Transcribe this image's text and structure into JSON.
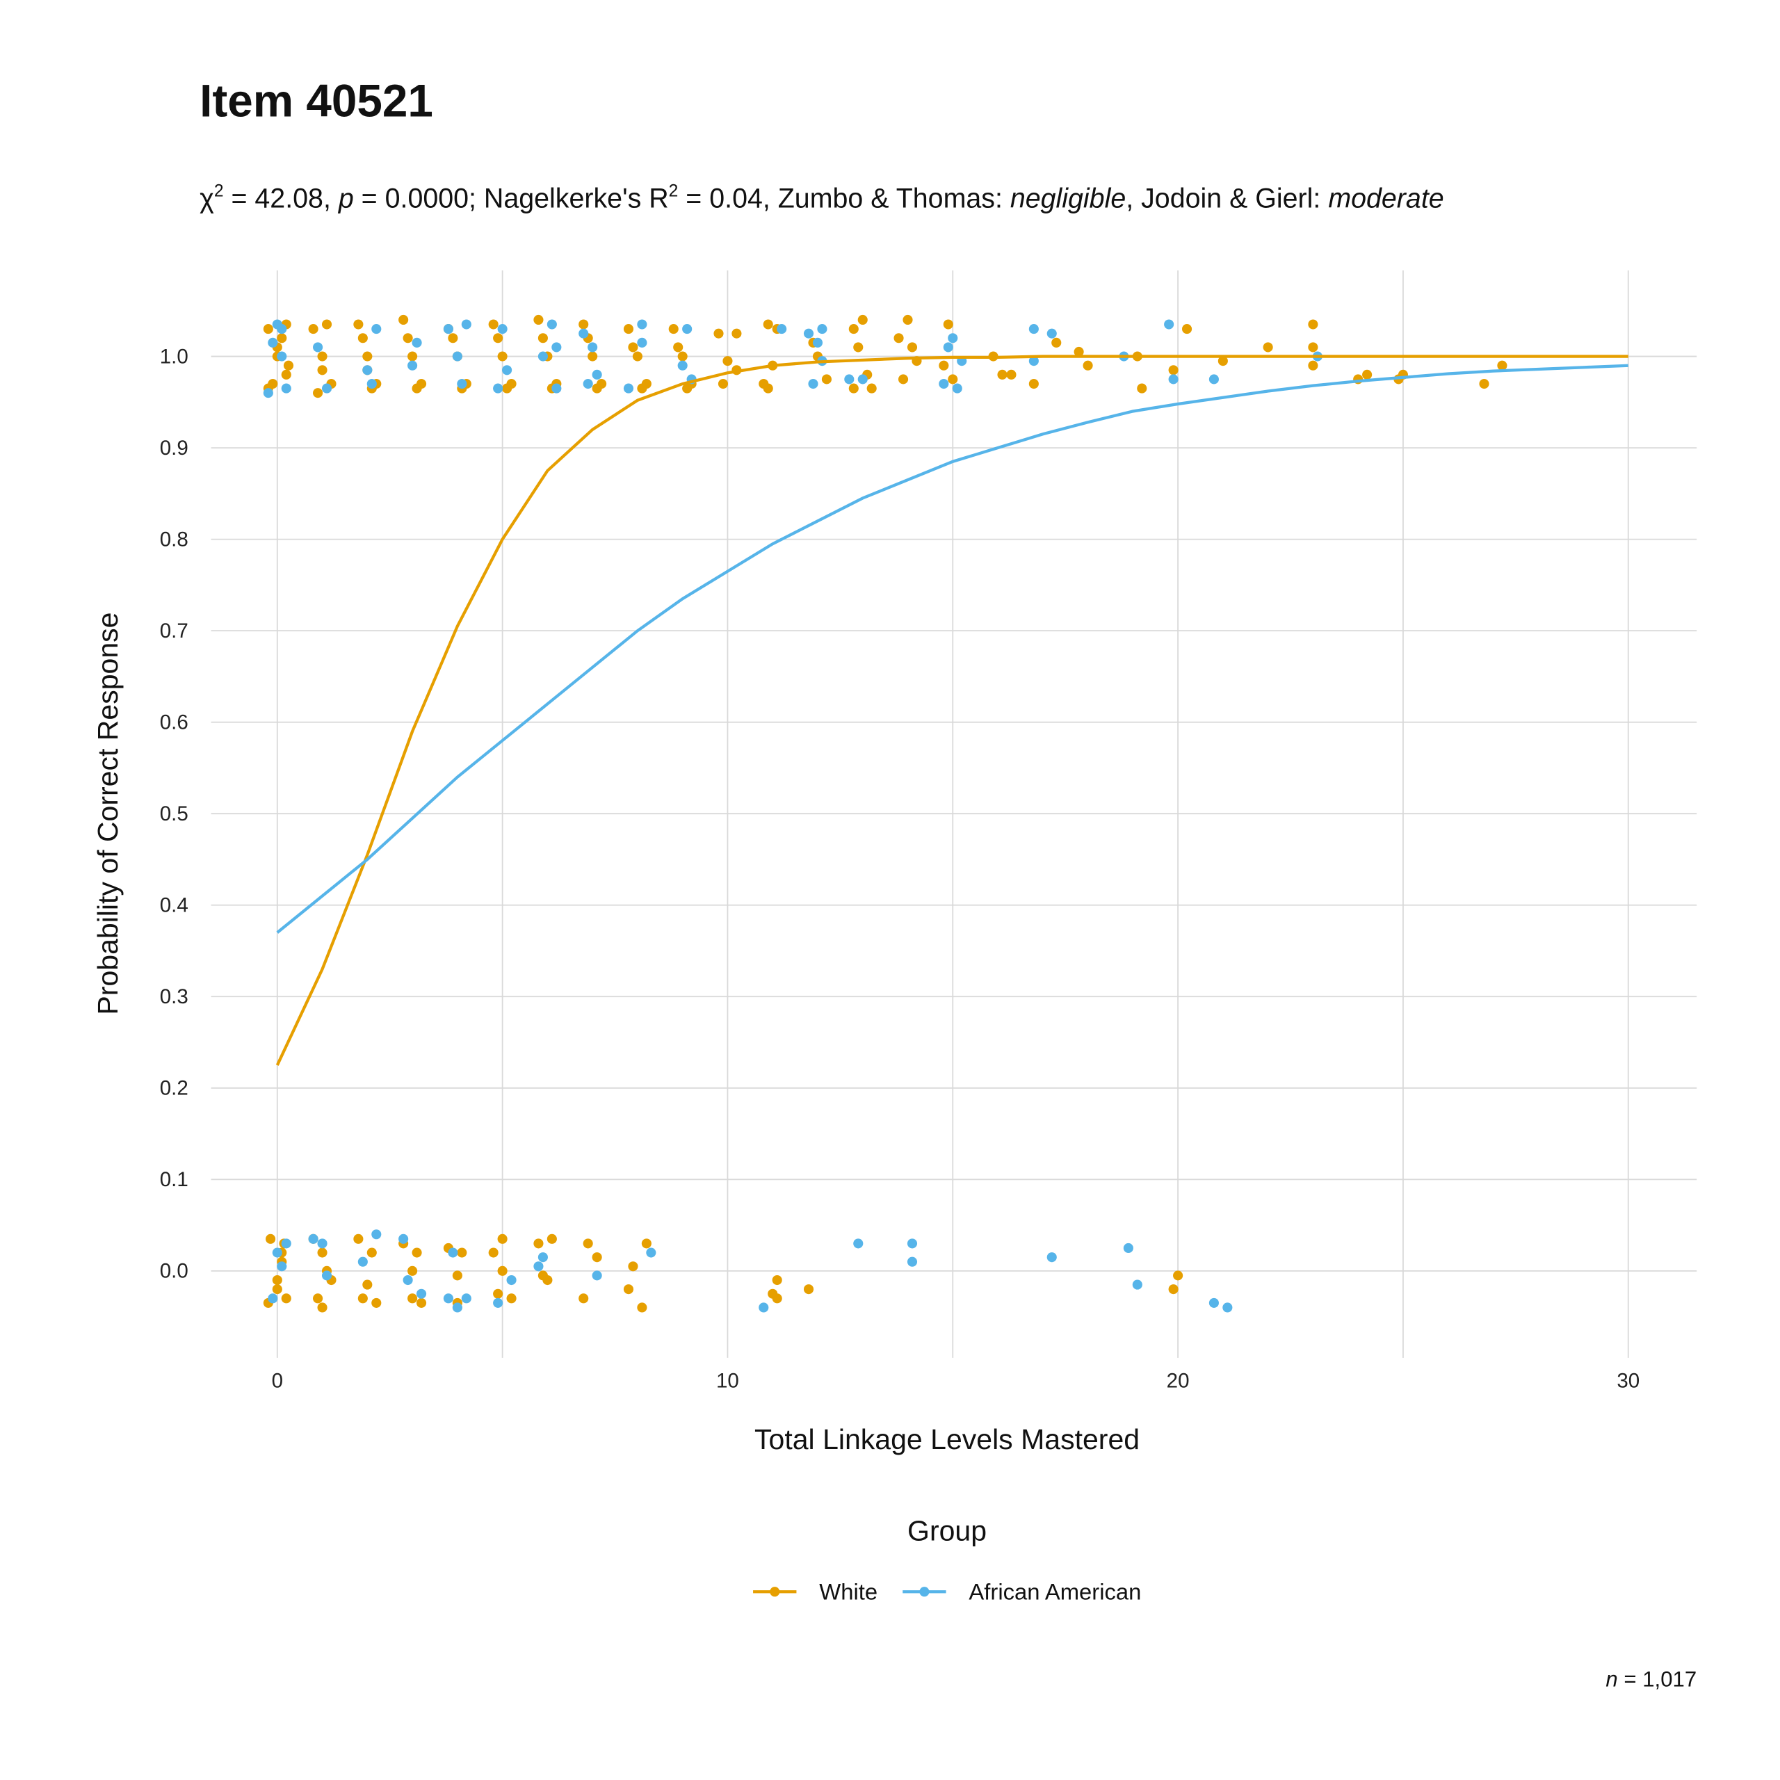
{
  "chart_data": {
    "type": "scatter",
    "title": "Item 40521",
    "subtitle": [
      "χ",
      "2",
      " = 42.08, ",
      "p",
      " = 0.0000; Nagelkerke's R",
      "2",
      " = 0.04, Zumbo & Thomas: ",
      "negligible",
      ", Jodoin & Gierl: ",
      "moderate"
    ],
    "x_label": "Total Linkage Levels Mastered",
    "y_label": "Probability of Correct Response",
    "legend_title": "Group",
    "caption": [
      "n",
      " = 1,017"
    ],
    "xlim": [
      -1.47,
      31.52
    ],
    "ylim": [
      -0.095,
      1.094
    ],
    "xticks": [
      0,
      10,
      20,
      30
    ],
    "x_minor_grid": [
      5,
      15,
      25
    ],
    "yticks": [
      {
        "value": 0,
        "label": "0.0"
      },
      0.1,
      0.2,
      0.3,
      0.4,
      0.5,
      0.6,
      0.7,
      0.8,
      0.9,
      {
        "value": 1,
        "label": "1.0"
      }
    ],
    "grid": true,
    "legend": "bottom",
    "series": [
      {
        "name": "White",
        "color": "#E69F00",
        "points": [
          [
            -0.2,
            1.03
          ],
          [
            0,
            1.0
          ],
          [
            0.2,
            0.98
          ],
          [
            -0.1,
            0.97
          ],
          [
            0.1,
            1.02
          ],
          [
            0.2,
            1.035
          ],
          [
            -0.2,
            0.965
          ],
          [
            0,
            1.01
          ],
          [
            0.25,
            0.99
          ],
          [
            -0.15,
            0.035
          ],
          [
            0.1,
            0.02
          ],
          [
            0,
            -0.01
          ],
          [
            0.2,
            -0.03
          ],
          [
            -0.2,
            -0.035
          ],
          [
            0.15,
            0.03
          ],
          [
            0,
            -0.02
          ],
          [
            0.1,
            0.01
          ],
          [
            0.8,
            1.03
          ],
          [
            1,
            1.0
          ],
          [
            1.2,
            0.97
          ],
          [
            0.9,
            0.96
          ],
          [
            1.1,
            1.035
          ],
          [
            1,
            0.985
          ],
          [
            0.8,
            0.035
          ],
          [
            1,
            0.02
          ],
          [
            1.2,
            -0.01
          ],
          [
            0.9,
            -0.03
          ],
          [
            1.1,
            0.0
          ],
          [
            1,
            -0.04
          ],
          [
            1.8,
            1.035
          ],
          [
            2,
            1.0
          ],
          [
            2.2,
            0.97
          ],
          [
            1.9,
            1.02
          ],
          [
            2.1,
            0.965
          ],
          [
            2,
            0.985
          ],
          [
            1.8,
            0.035
          ],
          [
            2.1,
            0.02
          ],
          [
            2,
            -0.015
          ],
          [
            2.2,
            -0.035
          ],
          [
            1.9,
            -0.03
          ],
          [
            2.8,
            1.04
          ],
          [
            3,
            1.0
          ],
          [
            3.2,
            0.97
          ],
          [
            2.9,
            1.02
          ],
          [
            3.1,
            0.965
          ],
          [
            2.8,
            0.03
          ],
          [
            3.1,
            0.02
          ],
          [
            3,
            -0.03
          ],
          [
            3.2,
            -0.035
          ],
          [
            3,
            0.0
          ],
          [
            3.8,
            1.03
          ],
          [
            4,
            1.0
          ],
          [
            4.2,
            0.97
          ],
          [
            3.9,
            1.02
          ],
          [
            4.1,
            0.965
          ],
          [
            3.8,
            0.025
          ],
          [
            4,
            -0.005
          ],
          [
            4.1,
            0.02
          ],
          [
            4,
            -0.035
          ],
          [
            4.8,
            1.035
          ],
          [
            5,
            1.0
          ],
          [
            5.2,
            0.97
          ],
          [
            4.9,
            1.02
          ],
          [
            5.1,
            0.965
          ],
          [
            4.8,
            0.02
          ],
          [
            5,
            0.035
          ],
          [
            5,
            0.0
          ],
          [
            5.2,
            -0.03
          ],
          [
            4.9,
            -0.025
          ],
          [
            5.8,
            1.04
          ],
          [
            6,
            1.0
          ],
          [
            6.2,
            0.97
          ],
          [
            5.9,
            1.02
          ],
          [
            6.1,
            0.965
          ],
          [
            5.8,
            0.03
          ],
          [
            6.1,
            0.035
          ],
          [
            6,
            -0.01
          ],
          [
            5.9,
            -0.005
          ],
          [
            6.8,
            1.035
          ],
          [
            7,
            1.0
          ],
          [
            7.2,
            0.97
          ],
          [
            6.9,
            1.02
          ],
          [
            7.1,
            0.965
          ],
          [
            6.9,
            0.03
          ],
          [
            7.1,
            0.015
          ],
          [
            6.8,
            -0.03
          ],
          [
            7.8,
            1.03
          ],
          [
            8,
            1.0
          ],
          [
            8.2,
            0.97
          ],
          [
            7.9,
            1.01
          ],
          [
            8.1,
            0.965
          ],
          [
            7.9,
            0.005
          ],
          [
            8.2,
            0.03
          ],
          [
            7.8,
            -0.02
          ],
          [
            8.1,
            -0.04
          ],
          [
            8.8,
            1.03
          ],
          [
            9,
            1.0
          ],
          [
            9.2,
            0.97
          ],
          [
            8.9,
            1.01
          ],
          [
            9.1,
            0.965
          ],
          [
            9.8,
            1.025
          ],
          [
            10.2,
            1.025
          ],
          [
            10,
            0.995
          ],
          [
            9.9,
            0.97
          ],
          [
            10.2,
            0.985
          ],
          [
            10.9,
            1.035
          ],
          [
            11.1,
            1.03
          ],
          [
            11,
            0.99
          ],
          [
            10.8,
            0.97
          ],
          [
            10.9,
            0.965
          ],
          [
            11,
            -0.025
          ],
          [
            11.1,
            -0.03
          ],
          [
            11.1,
            -0.01
          ],
          [
            11.8,
            -0.02
          ],
          [
            12,
            1.0
          ],
          [
            12.2,
            0.975
          ],
          [
            11.9,
            1.015
          ],
          [
            12.8,
            1.03
          ],
          [
            13,
            1.04
          ],
          [
            12.9,
            1.01
          ],
          [
            13.1,
            0.98
          ],
          [
            13.2,
            0.965
          ],
          [
            12.8,
            0.965
          ],
          [
            13.8,
            1.02
          ],
          [
            14,
            1.04
          ],
          [
            14.1,
            1.01
          ],
          [
            13.9,
            0.975
          ],
          [
            14.2,
            0.995
          ],
          [
            14.9,
            1.035
          ],
          [
            14.8,
            0.99
          ],
          [
            15,
            0.975
          ],
          [
            15.9,
            1.0
          ],
          [
            16.1,
            0.98
          ],
          [
            16.3,
            0.98
          ],
          [
            16.8,
            0.97
          ],
          [
            17.3,
            1.015
          ],
          [
            17.8,
            1.005
          ],
          [
            18,
            0.99
          ],
          [
            19.1,
            1.0
          ],
          [
            19.2,
            0.965
          ],
          [
            19.9,
            0.985
          ],
          [
            20.2,
            1.03
          ],
          [
            19.9,
            -0.02
          ],
          [
            20,
            -0.005
          ],
          [
            21,
            0.995
          ],
          [
            22,
            1.01
          ],
          [
            23,
            1.035
          ],
          [
            23,
            1.01
          ],
          [
            23,
            0.99
          ],
          [
            24,
            0.975
          ],
          [
            24.2,
            0.98
          ],
          [
            25,
            0.98
          ],
          [
            24.9,
            0.975
          ],
          [
            26.8,
            0.97
          ],
          [
            27.2,
            0.99
          ]
        ],
        "fit_x": [
          0,
          1,
          2,
          3,
          4,
          5,
          6,
          7,
          8,
          9,
          10,
          11,
          12,
          13,
          14,
          15,
          16,
          17,
          18,
          19,
          20,
          21,
          22,
          23,
          24,
          25,
          26,
          27,
          28,
          29,
          30
        ],
        "fit_y": [
          0.225,
          0.33,
          0.455,
          0.59,
          0.705,
          0.8,
          0.875,
          0.92,
          0.952,
          0.97,
          0.982,
          0.99,
          0.994,
          0.996,
          0.998,
          0.999,
          0.999,
          1,
          1,
          1,
          1,
          1,
          1,
          1,
          1,
          1,
          1,
          1,
          1,
          1,
          1
        ]
      },
      {
        "name": "African American",
        "color": "#56B4E9",
        "points": [
          [
            -0.2,
            0.96
          ],
          [
            0,
            1.035
          ],
          [
            0.1,
            1.0
          ],
          [
            -0.1,
            1.015
          ],
          [
            0.2,
            0.965
          ],
          [
            0.1,
            1.03
          ],
          [
            0,
            0.02
          ],
          [
            -0.1,
            -0.03
          ],
          [
            0.1,
            0.005
          ],
          [
            0.2,
            0.03
          ],
          [
            0.9,
            1.01
          ],
          [
            1.1,
            0.965
          ],
          [
            0.8,
            0.035
          ],
          [
            1,
            0.03
          ],
          [
            1.1,
            -0.005
          ],
          [
            2.2,
            1.03
          ],
          [
            2,
            0.985
          ],
          [
            2.1,
            0.97
          ],
          [
            2.2,
            0.04
          ],
          [
            1.9,
            0.01
          ],
          [
            3.1,
            1.015
          ],
          [
            3,
            0.99
          ],
          [
            2.8,
            0.035
          ],
          [
            2.9,
            -0.01
          ],
          [
            3.2,
            -0.025
          ],
          [
            3.8,
            1.03
          ],
          [
            4.2,
            1.035
          ],
          [
            4,
            1.0
          ],
          [
            4.1,
            0.97
          ],
          [
            3.9,
            0.02
          ],
          [
            4,
            -0.04
          ],
          [
            4.2,
            -0.03
          ],
          [
            3.8,
            -0.03
          ],
          [
            4.9,
            0.965
          ],
          [
            5.1,
            0.985
          ],
          [
            5,
            1.03
          ],
          [
            4.9,
            -0.035
          ],
          [
            5.2,
            -0.01
          ],
          [
            6.1,
            1.035
          ],
          [
            6.2,
            1.01
          ],
          [
            5.9,
            1.0
          ],
          [
            6.2,
            0.965
          ],
          [
            5.8,
            0.005
          ],
          [
            5.9,
            0.015
          ],
          [
            6.8,
            1.025
          ],
          [
            7,
            1.01
          ],
          [
            7.1,
            0.98
          ],
          [
            7.1,
            -0.005
          ],
          [
            6.9,
            0.97
          ],
          [
            8.1,
            1.035
          ],
          [
            8.1,
            1.015
          ],
          [
            7.8,
            0.965
          ],
          [
            8.3,
            0.02
          ],
          [
            9.1,
            1.03
          ],
          [
            9.2,
            0.975
          ],
          [
            9,
            0.99
          ],
          [
            10.8,
            -0.04
          ],
          [
            11.2,
            1.03
          ],
          [
            11.8,
            1.025
          ],
          [
            12,
            1.015
          ],
          [
            12.1,
            1.03
          ],
          [
            11.9,
            0.97
          ],
          [
            12.1,
            0.995
          ],
          [
            12.7,
            0.975
          ],
          [
            13,
            0.975
          ],
          [
            12.9,
            0.03
          ],
          [
            14.1,
            0.03
          ],
          [
            14.1,
            0.01
          ],
          [
            14.8,
            0.97
          ],
          [
            14.9,
            1.01
          ],
          [
            15,
            1.02
          ],
          [
            15.1,
            0.965
          ],
          [
            15.2,
            0.995
          ],
          [
            16.8,
            1.03
          ],
          [
            16.8,
            0.995
          ],
          [
            17.2,
            1.025
          ],
          [
            17.2,
            0.015
          ],
          [
            18.8,
            1.0
          ],
          [
            18.9,
            0.025
          ],
          [
            19.1,
            -0.015
          ],
          [
            19.8,
            1.035
          ],
          [
            19.9,
            0.975
          ],
          [
            20.8,
            0.975
          ],
          [
            20.8,
            -0.035
          ],
          [
            21.1,
            -0.04
          ],
          [
            23.1,
            1.0
          ]
        ],
        "fit_x": [
          0,
          1,
          2,
          3,
          4,
          5,
          6,
          7,
          8,
          9,
          10,
          11,
          12,
          13,
          14,
          15,
          16,
          17,
          18,
          19,
          20,
          21,
          22,
          23,
          24,
          25,
          26,
          27,
          28,
          29,
          30
        ],
        "fit_y": [
          0.37,
          0.41,
          0.45,
          0.495,
          0.54,
          0.58,
          0.62,
          0.66,
          0.7,
          0.735,
          0.765,
          0.795,
          0.82,
          0.845,
          0.865,
          0.885,
          0.9,
          0.915,
          0.928,
          0.94,
          0.948,
          0.955,
          0.962,
          0.968,
          0.973,
          0.977,
          0.981,
          0.984,
          0.986,
          0.988,
          0.99
        ]
      }
    ]
  }
}
